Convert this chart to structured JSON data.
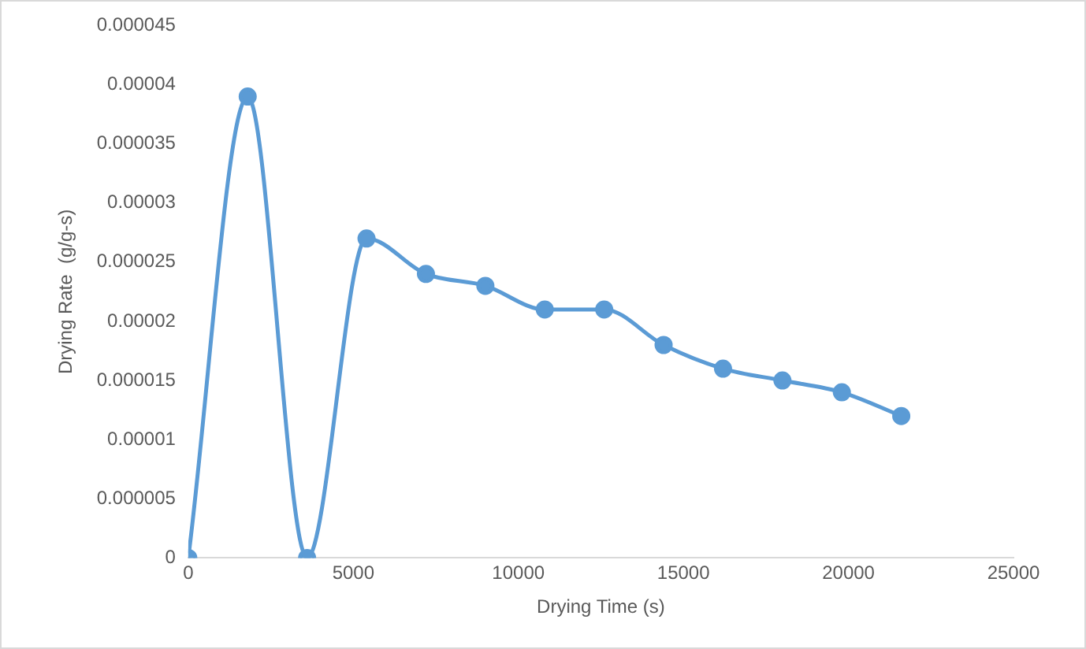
{
  "chart_data": {
    "type": "line",
    "xlabel": "Drying Time (s)",
    "ylabel": "Drying Rate  (g/g-s)",
    "x": [
      0,
      1800,
      3600,
      5400,
      7200,
      9000,
      10800,
      12600,
      14400,
      16200,
      18000,
      19800,
      21600
    ],
    "series": [
      {
        "color": "#5b9bd5",
        "values": [
          0,
          3.9e-05,
          0,
          2.7e-05,
          2.4e-05,
          2.3e-05,
          2.1e-05,
          2.1e-05,
          1.8e-05,
          1.6e-05,
          1.5e-05,
          1.4e-05,
          1.2e-05
        ]
      }
    ],
    "xlim": [
      0,
      25000
    ],
    "xticks": [
      0,
      5000,
      10000,
      15000,
      20000,
      25000
    ],
    "ylim": [
      0,
      4.5e-05
    ],
    "yticks": [
      0,
      {
        "value": 5e-06,
        "label": "0.000005"
      },
      {
        "value": 1e-05,
        "label": "0.00001"
      },
      {
        "value": 1.5e-05,
        "label": "0.000015"
      },
      {
        "value": 2e-05,
        "label": "0.00002"
      },
      {
        "value": 2.5e-05,
        "label": "0.000025"
      },
      {
        "value": 3e-05,
        "label": "0.00003"
      },
      {
        "value": 3.5e-05,
        "label": "0.000035"
      },
      {
        "value": 4e-05,
        "label": "0.00004"
      },
      {
        "value": 4.5e-05,
        "label": "0.000045"
      }
    ],
    "grid": false,
    "legend": false,
    "marker": "circle",
    "line_style": "solid"
  }
}
